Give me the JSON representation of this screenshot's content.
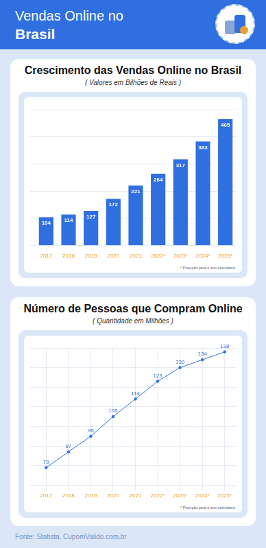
{
  "header": {
    "title": [
      "Vendas Online no",
      "Brasil"
    ]
  },
  "source": "Fonte: Statista, CupomValido.com.br",
  "chart_data": [
    {
      "type": "bar",
      "title": "Crescimento das Vendas Online no Brasil",
      "subtitle": "( Valores em Bilhões de Reais )",
      "categories": [
        "2017",
        "2018",
        "2019",
        "2020",
        "2021",
        "2022*",
        "2023*",
        "2024*",
        "2025*"
      ],
      "values": [
        104,
        114,
        127,
        172,
        221,
        264,
        317,
        383,
        465
      ],
      "color": "#2f6fe0",
      "ylim": [
        0,
        500
      ],
      "yticks": [
        0,
        100,
        200,
        300,
        400,
        500
      ],
      "grid": true,
      "data_labels": true,
      "tick_labels": "x",
      "annotations": [
        "* Projeção para o ano calendário"
      ]
    },
    {
      "type": "line",
      "title": "Número de Pessoas que Compram Online",
      "subtitle": "( Quantidade em Milhões )",
      "categories": [
        "2017",
        "2018",
        "2019",
        "2020",
        "2021",
        "2022*",
        "2023*",
        "2024*",
        "2025*"
      ],
      "values": [
        79,
        87,
        95,
        105,
        114,
        123,
        130,
        134,
        138
      ],
      "color": "#2f6fe0",
      "ylim": [
        70,
        140
      ],
      "yticks": [
        70,
        80,
        90,
        100,
        110,
        120,
        130,
        140
      ],
      "grid": true,
      "data_labels": true,
      "tick_labels": "x",
      "marker": "circle",
      "annotations": [
        "* Projeção para o ano calendário"
      ]
    }
  ]
}
